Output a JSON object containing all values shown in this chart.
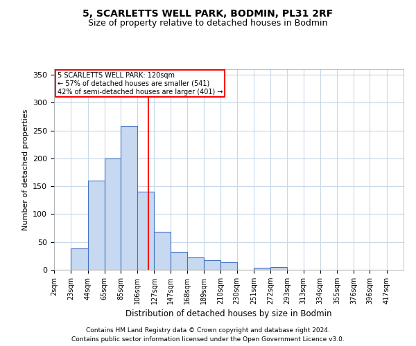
{
  "title1": "5, SCARLETTS WELL PARK, BODMIN, PL31 2RF",
  "title2": "Size of property relative to detached houses in Bodmin",
  "xlabel": "Distribution of detached houses by size in Bodmin",
  "ylabel": "Number of detached properties",
  "bin_labels": [
    "2sqm",
    "23sqm",
    "44sqm",
    "65sqm",
    "85sqm",
    "106sqm",
    "127sqm",
    "147sqm",
    "168sqm",
    "189sqm",
    "210sqm",
    "230sqm",
    "251sqm",
    "272sqm",
    "293sqm",
    "313sqm",
    "334sqm",
    "355sqm",
    "376sqm",
    "396sqm",
    "417sqm"
  ],
  "bin_edges": [
    2,
    23,
    44,
    65,
    85,
    106,
    127,
    147,
    168,
    189,
    210,
    230,
    251,
    272,
    293,
    313,
    334,
    355,
    376,
    396,
    417
  ],
  "bar_heights": [
    0,
    38,
    160,
    200,
    258,
    140,
    68,
    32,
    22,
    18,
    14,
    0,
    4,
    5,
    0,
    0,
    0,
    0,
    0,
    0
  ],
  "bar_color": "#c6d9f0",
  "bar_edge_color": "#4472c4",
  "red_line_x": 120,
  "ylim": [
    0,
    360
  ],
  "yticks": [
    0,
    50,
    100,
    150,
    200,
    250,
    300,
    350
  ],
  "annotation_text": "5 SCARLETTS WELL PARK: 120sqm\n← 57% of detached houses are smaller (541)\n42% of semi-detached houses are larger (401) →",
  "footer1": "Contains HM Land Registry data © Crown copyright and database right 2024.",
  "footer2": "Contains public sector information licensed under the Open Government Licence v3.0.",
  "bg_color": "#ffffff",
  "grid_color": "#c8d8e8"
}
